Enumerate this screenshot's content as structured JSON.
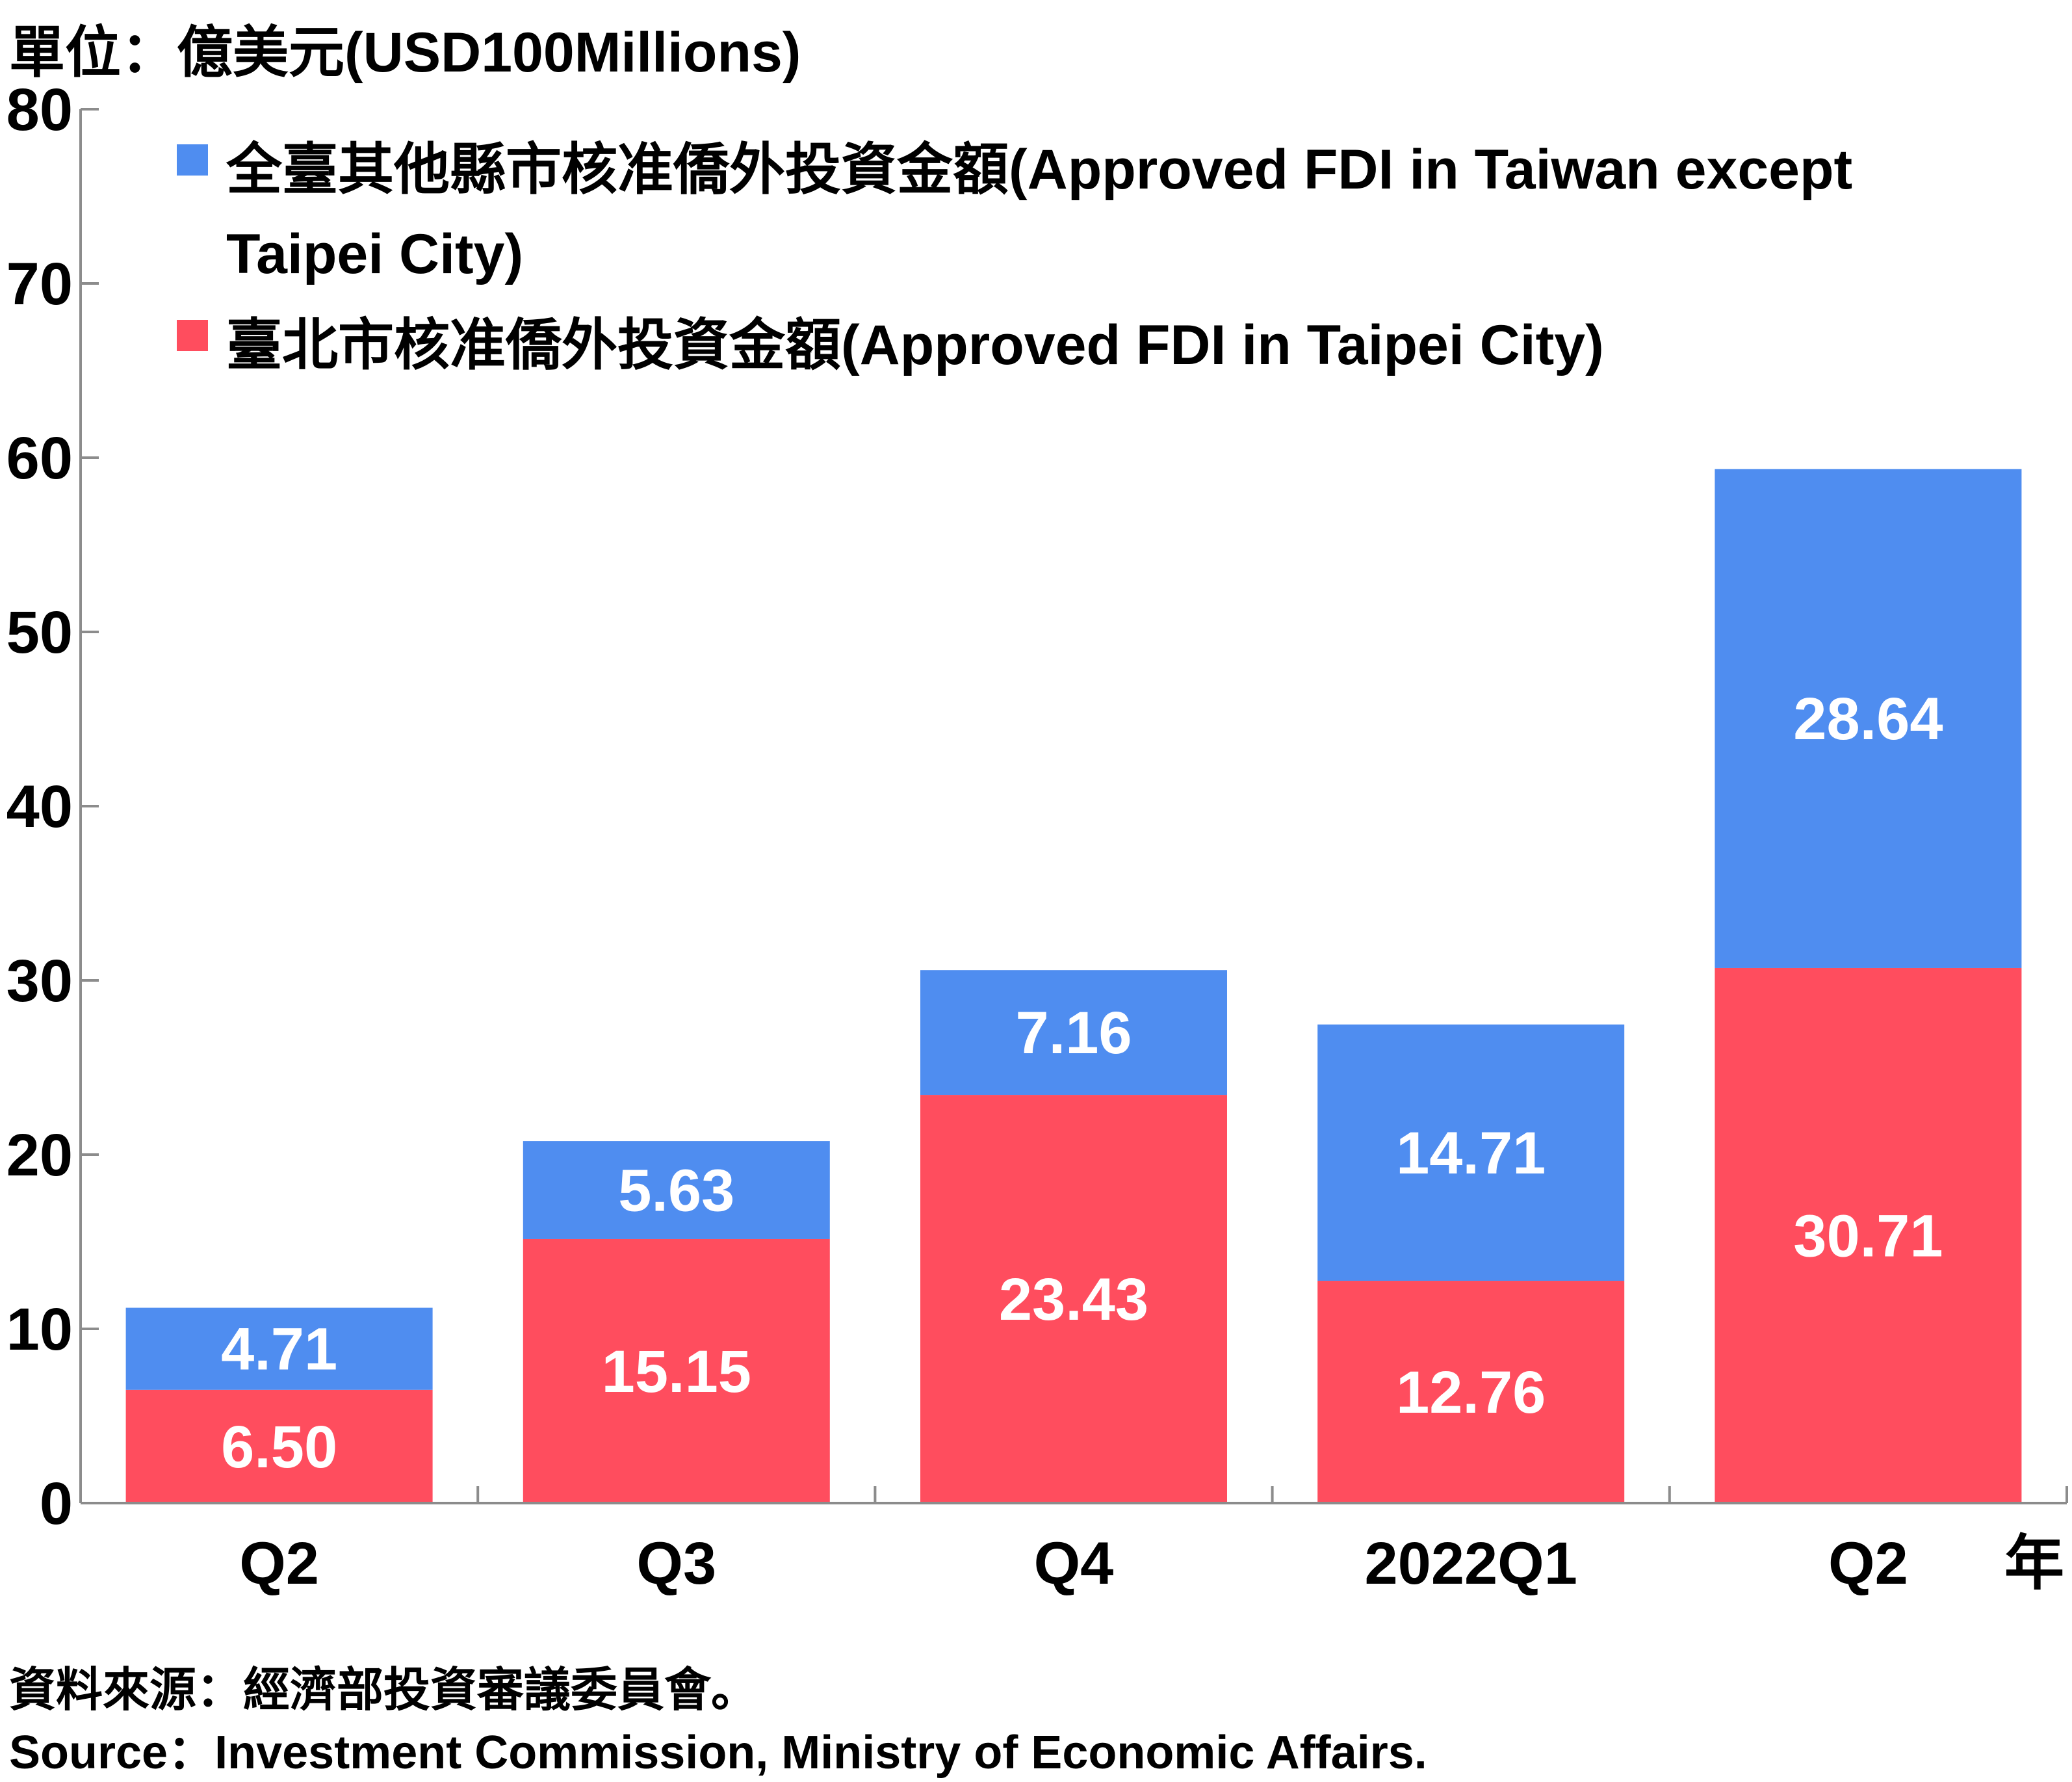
{
  "unit_label": "單位：億美元(USD100Millions)",
  "x_unit_label": "年",
  "legend": [
    {
      "text_line1": "全臺其他縣市核准僑外投資金額(Approved FDI in Taiwan except",
      "text_line2": "Taipei City)",
      "color": "#4f8df0"
    },
    {
      "text_line1": "臺北市核准僑外投資金額(Approved FDI in Taipei City)",
      "text_line2": "",
      "color": "#ff4d5e"
    }
  ],
  "source_zh": "資料來源：經濟部投資審議委員會。",
  "source_en": "Source：Investment Commission, Ministry of Economic Affairs.",
  "chart_data": {
    "type": "bar",
    "stacked": true,
    "categories": [
      "Q2",
      "Q3",
      "Q4",
      "2022Q1",
      "Q2"
    ],
    "series": [
      {
        "name": "臺北市核准僑外投資金額(Approved FDI in Taipei City)",
        "values": [
          6.5,
          15.15,
          23.43,
          12.76,
          30.71
        ],
        "labels": [
          "6.50",
          "15.15",
          "23.43",
          "12.76",
          "30.71"
        ],
        "color": "#ff4d5e"
      },
      {
        "name": "全臺其他縣市核准僑外投資金額(Approved FDI in Taiwan except Taipei City)",
        "values": [
          4.71,
          5.63,
          7.16,
          14.71,
          28.64
        ],
        "labels": [
          "4.71",
          "5.63",
          "7.16",
          "14.71",
          "28.64"
        ],
        "color": "#4f8df0"
      }
    ],
    "yticks": [
      "0",
      "10",
      "20",
      "30",
      "40",
      "50",
      "60",
      "70",
      "80"
    ],
    "ylim": [
      0,
      80
    ],
    "grid": false,
    "legend_position": "top-left"
  }
}
